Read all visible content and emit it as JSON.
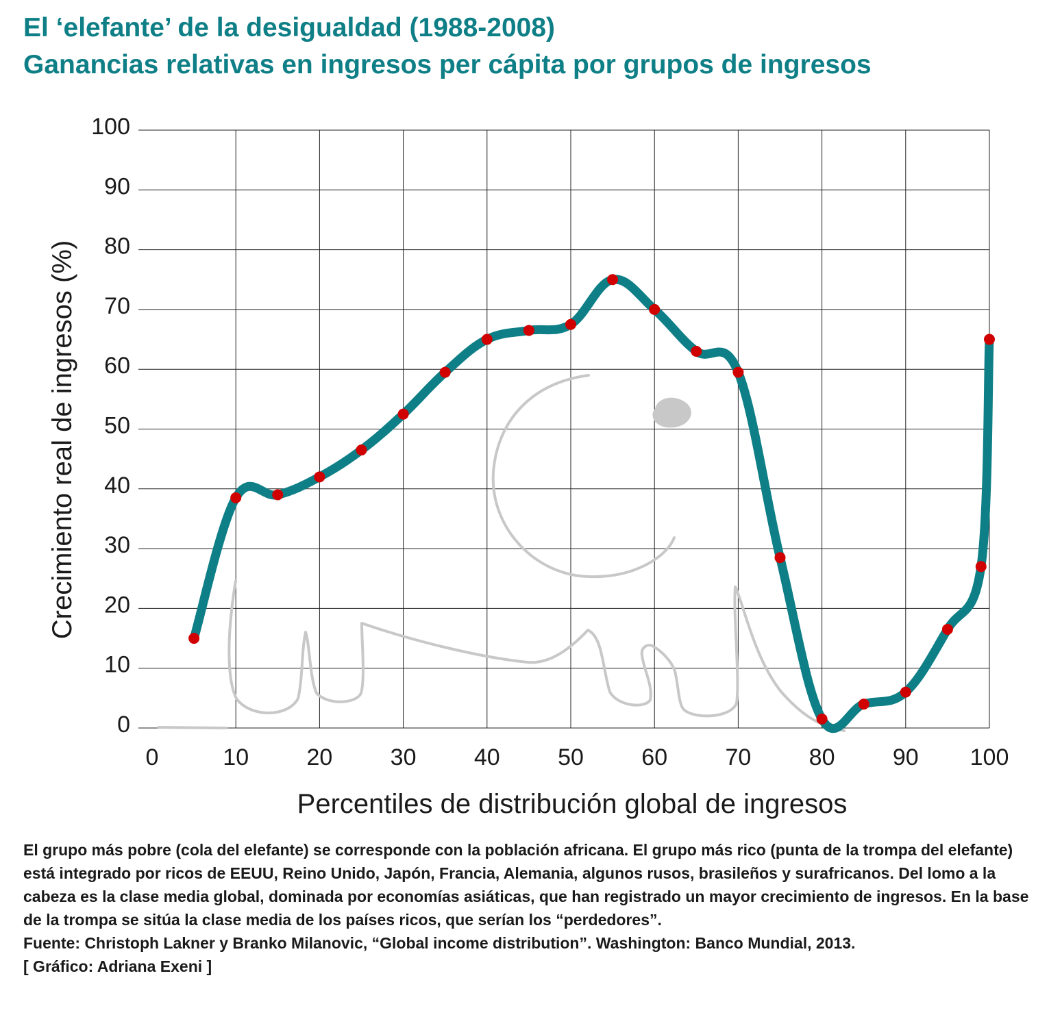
{
  "header": {
    "title": "El ‘elefante’ de la desigualdad (1988-2008)",
    "subtitle": "Ganancias relativas en ingresos per cápita por grupos de ingresos"
  },
  "chart_data": {
    "type": "line",
    "xlabel": "Percentiles de distribución global de ingresos",
    "ylabel": "Crecimiento real de ingresos (%)",
    "xlim": [
      0,
      100
    ],
    "ylim": [
      0,
      100
    ],
    "xticks": [
      0,
      10,
      20,
      30,
      40,
      50,
      60,
      70,
      80,
      90,
      100
    ],
    "yticks": [
      0,
      10,
      20,
      30,
      40,
      50,
      60,
      70,
      80,
      90,
      100
    ],
    "grid": true,
    "colors": {
      "line": "#0e7f86",
      "points": "#d10000",
      "grid": "#222222",
      "elephant": "#c8c8c8"
    },
    "series": [
      {
        "x": [
          5,
          10,
          15,
          20,
          25,
          30,
          35,
          40,
          45,
          50,
          55,
          60,
          65,
          70,
          75,
          80,
          85,
          90,
          95,
          99,
          100
        ],
        "values": [
          15,
          38.5,
          39,
          42,
          46.5,
          52.5,
          59.5,
          65,
          66.5,
          67.5,
          75,
          70,
          63,
          59.5,
          28.5,
          1.5,
          4,
          6,
          16.5,
          27,
          65
        ]
      }
    ]
  },
  "notes": {
    "description": "El grupo más pobre (cola del elefante) se corresponde con la población africana. El grupo más rico (punta de la trompa del elefante) está integrado por ricos de EEUU, Reino Unido, Japón, Francia, Alemania, algunos rusos, brasileños y surafricanos. Del lomo a la cabeza es la clase media global, dominada por economías asiáticas, que han registrado un mayor crecimiento de ingresos. En la base de la trompa se sitúa la clase media de los países ricos, que serían los “perdedores”.",
    "source": "Fuente: Christoph Lakner y Branko Milanovic, “Global income distribution”. Washington: Banco Mundial, 2013.",
    "credit": "[ Gráfico: Adriana Exeni ]"
  }
}
